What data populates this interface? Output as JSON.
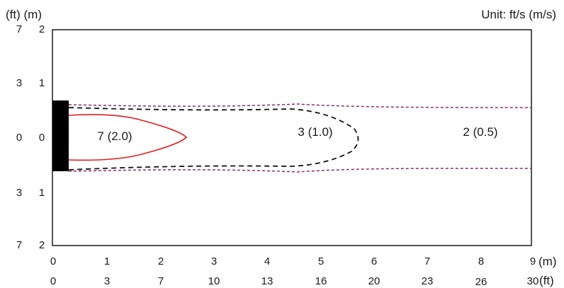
{
  "header": {
    "left_units_label": "(ft) (m)",
    "unit_note": "Unit: ft/s (m/s)"
  },
  "axes": {
    "y_ticks_ft": [
      "7",
      "3",
      "0",
      "3",
      "7"
    ],
    "y_ticks_m": [
      "2",
      "1",
      "0",
      "1",
      "2"
    ],
    "x_ticks_m": [
      "0",
      "1",
      "2",
      "3",
      "4",
      "5",
      "6",
      "7",
      "8",
      "9"
    ],
    "x_ticks_ft": [
      "0",
      "3",
      "7",
      "10",
      "13",
      "16",
      "20",
      "23",
      "26",
      "30"
    ],
    "x_unit_m": "(m)",
    "x_unit_ft": "(ft)"
  },
  "zones": [
    {
      "label": "7 (2.0)",
      "color": "#e02020",
      "style": "solid"
    },
    {
      "label": "3 (1.0)",
      "color": "#111111",
      "style": "dashed"
    },
    {
      "label": "2 (0.5)",
      "color": "#8b2c6e",
      "style": "dashed"
    }
  ],
  "colors": {
    "frame": "#1a1a1a",
    "outlet": "#000000"
  }
}
